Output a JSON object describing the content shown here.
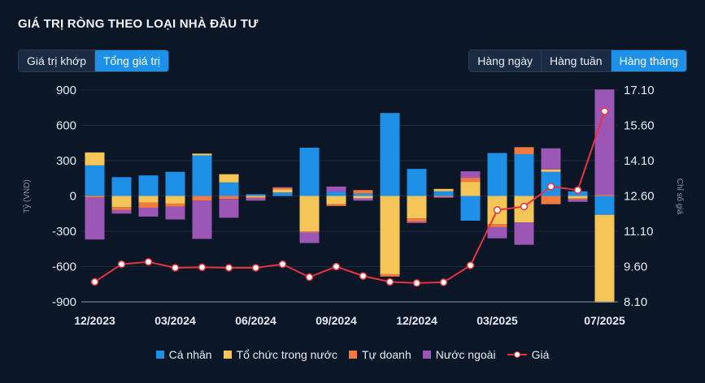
{
  "title": "GIÁ TRỊ RÒNG THEO LOẠI NHÀ ĐẦU TƯ",
  "toggle_left": [
    {
      "label": "Giá trị khớp",
      "active": false
    },
    {
      "label": "Tổng giá trị",
      "active": true
    }
  ],
  "toggle_right": [
    {
      "label": "Hàng ngày",
      "active": false
    },
    {
      "label": "Hàng tuần",
      "active": false
    },
    {
      "label": "Hàng tháng",
      "active": true
    }
  ],
  "chart_data": {
    "type": "bar",
    "stacked": true,
    "xlabel": "",
    "ylabel": "Tỷ (VND)",
    "y2label": "Chỉ số giá",
    "ylim": [
      -900,
      900
    ],
    "y_ticks": [
      "900",
      "600",
      "300",
      "0",
      "-300",
      "-600",
      "-900"
    ],
    "y2lim": [
      8.1,
      17.1
    ],
    "y2_ticks": [
      "17.10",
      "15.60",
      "14.10",
      "12.60",
      "11.10",
      "9.60",
      "8.10"
    ],
    "x_tick_labels": [
      {
        "index": 0,
        "label": "12/2023"
      },
      {
        "index": 3,
        "label": "03/2024"
      },
      {
        "index": 6,
        "label": "06/2024"
      },
      {
        "index": 9,
        "label": "09/2024"
      },
      {
        "index": 12,
        "label": "12/2024"
      },
      {
        "index": 15,
        "label": "03/2025"
      },
      {
        "index": 19,
        "label": "07/2025"
      }
    ],
    "categories": [
      "12/2023",
      "01/2024",
      "02/2024",
      "03/2024",
      "04/2024",
      "05/2024",
      "06/2024",
      "07/2024",
      "08/2024",
      "09/2024",
      "10/2024",
      "11/2024",
      "12/2024",
      "01/2025",
      "02/2025",
      "03/2025",
      "04/2025",
      "05/2025",
      "06/2025",
      "07/2025"
    ],
    "series": [
      {
        "name": "Cá nhân",
        "color": "#1e90e8",
        "values": [
          260,
          160,
          175,
          205,
          345,
          115,
          15,
          30,
          410,
          35,
          20,
          705,
          230,
          40,
          -210,
          365,
          355,
          205,
          40,
          -160
        ]
      },
      {
        "name": "Tổ chức trong nước",
        "color": "#f5c558",
        "values": [
          110,
          -95,
          -55,
          -65,
          15,
          70,
          -10,
          25,
          -300,
          -70,
          -20,
          -665,
          -190,
          20,
          120,
          -240,
          -225,
          20,
          -20,
          -745
        ]
      },
      {
        "name": "Tự doanh",
        "color": "#f07a40",
        "values": [
          -15,
          -25,
          -45,
          -25,
          -40,
          -25,
          -10,
          15,
          -10,
          -15,
          30,
          -20,
          -30,
          -10,
          35,
          -25,
          60,
          -70,
          -10,
          10
        ]
      },
      {
        "name": "Nước ngoài",
        "color": "#9c56b5",
        "values": [
          -355,
          -30,
          -75,
          -110,
          -325,
          -160,
          -20,
          5,
          -90,
          45,
          -20,
          0,
          -10,
          -5,
          55,
          -95,
          -190,
          180,
          -20,
          895
        ]
      }
    ],
    "line": {
      "name": "Giá",
      "color": "#e8333f",
      "values": [
        8.95,
        9.7,
        9.8,
        9.55,
        9.57,
        9.55,
        9.55,
        9.7,
        9.15,
        9.6,
        9.2,
        8.95,
        8.9,
        8.93,
        9.65,
        12.0,
        12.15,
        13.0,
        12.85,
        16.2
      ]
    },
    "legend_position": "bottom",
    "grid": true
  }
}
